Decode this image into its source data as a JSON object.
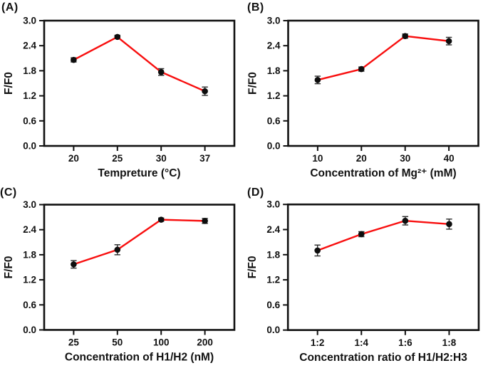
{
  "figure": {
    "background": "#ffffff",
    "axis_color": "#111111",
    "line_color": "#f80f0f",
    "marker_color": "#0d0d0d",
    "errorbar_color": "#2b2b2b"
  },
  "chart_data": [
    {
      "type": "line",
      "panel_label": "(A)",
      "title": "",
      "xlabel": "Tempreture (°C)",
      "ylabel": "F/F0",
      "categories": [
        "20",
        "25",
        "30",
        "37"
      ],
      "values": [
        2.06,
        2.61,
        1.77,
        1.31
      ],
      "errors": [
        0.05,
        0.04,
        0.08,
        0.1
      ],
      "yticks": [
        "0.0",
        "0.6",
        "1.2",
        "1.8",
        "2.4",
        "3.0"
      ],
      "ylim": [
        0.0,
        3.0
      ],
      "grid": "off",
      "legend": "none"
    },
    {
      "type": "line",
      "panel_label": "(B)",
      "title": "",
      "xlabel": "Concentration of Mg²⁺ (mM)",
      "ylabel": "F/F0",
      "categories": [
        "10",
        "20",
        "30",
        "40"
      ],
      "values": [
        1.58,
        1.84,
        2.63,
        2.51
      ],
      "errors": [
        0.09,
        0.05,
        0.05,
        0.09
      ],
      "yticks": [
        "0.0",
        "0.6",
        "1.2",
        "1.8",
        "2.4",
        "3.0"
      ],
      "ylim": [
        0.0,
        3.0
      ],
      "grid": "off",
      "legend": "none"
    },
    {
      "type": "line",
      "panel_label": "(C)",
      "title": "",
      "xlabel": "Concentration of H1/H2 (nM)",
      "ylabel": "F/F0",
      "categories": [
        "25",
        "50",
        "100",
        "200"
      ],
      "values": [
        1.57,
        1.92,
        2.64,
        2.61
      ],
      "errors": [
        0.09,
        0.12,
        0.04,
        0.06
      ],
      "yticks": [
        "0.0",
        "0.6",
        "1.2",
        "1.8",
        "2.4",
        "3.0"
      ],
      "ylim": [
        0.0,
        3.0
      ],
      "grid": "off",
      "legend": "none"
    },
    {
      "type": "line",
      "panel_label": "(D)",
      "title": "",
      "xlabel": "Concentration ratio of H1/H2:H3",
      "ylabel": "F/F0",
      "categories": [
        "1:2",
        "1:4",
        "1:6",
        "1:8"
      ],
      "values": [
        1.9,
        2.29,
        2.61,
        2.53
      ],
      "errors": [
        0.13,
        0.06,
        0.1,
        0.12
      ],
      "yticks": [
        "0.0",
        "0.6",
        "1.2",
        "1.8",
        "2.4",
        "3.0"
      ],
      "ylim": [
        0.0,
        3.0
      ],
      "grid": "off",
      "legend": "none"
    }
  ]
}
